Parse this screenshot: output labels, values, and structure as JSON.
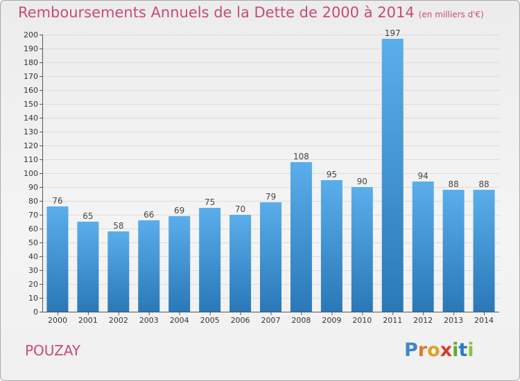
{
  "header": {
    "title": "Remboursements Annuels de la Dette de 2000 à 2014",
    "unit": "(en milliers d'€)"
  },
  "footer": {
    "commune": "POUZAY",
    "logo": "Proxiti"
  },
  "colors": {
    "title": "#c84a78",
    "bar_top": "#5aaeea",
    "bar_bottom": "#2a78b8"
  },
  "chart_data": {
    "type": "bar",
    "title": "Remboursements Annuels de la Dette de 2000 à 2014",
    "subtitle": "(en milliers d'€)",
    "xlabel": "",
    "ylabel": "",
    "categories": [
      "2000",
      "2001",
      "2002",
      "2003",
      "2004",
      "2005",
      "2006",
      "2007",
      "2008",
      "2009",
      "2010",
      "2011",
      "2012",
      "2013",
      "2014"
    ],
    "values": [
      76,
      65,
      58,
      66,
      69,
      75,
      70,
      79,
      108,
      95,
      90,
      197,
      94,
      88,
      88
    ],
    "ylim": [
      0,
      200
    ],
    "ytick_step": 10,
    "grid": true,
    "legend": "none"
  }
}
